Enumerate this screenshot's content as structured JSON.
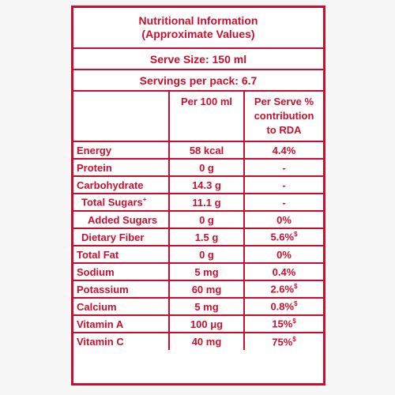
{
  "title_line1": "Nutritional Information",
  "title_line2": "(Approximate Values)",
  "serve_size": "Serve Size: 150 ml",
  "servings": "Servings per pack: 6.7",
  "col_per100": "Per 100 ml",
  "col_serve_l1": "Per Serve %",
  "col_serve_l2": "contribution",
  "col_serve_l3": "to RDA",
  "rows": [
    {
      "name": "Energy",
      "per100": "58 kcal",
      "serve": "4.4%"
    },
    {
      "name": "Protein",
      "per100": "0 g",
      "serve": "-"
    },
    {
      "name": "Carbohydrate",
      "per100": "14.3 g",
      "serve": "-"
    },
    {
      "name": "Total Sugars",
      "per100": "11.1 g",
      "serve": "-"
    },
    {
      "name": "Added Sugars",
      "per100": "0 g",
      "serve": "0%"
    },
    {
      "name": "Dietary Fiber",
      "per100": "1.5 g",
      "serve": "5.6%"
    },
    {
      "name": "Total Fat",
      "per100": "0 g",
      "serve": "0%"
    },
    {
      "name": "Sodium",
      "per100": "5 mg",
      "serve": "0.4%"
    },
    {
      "name": "Potassium",
      "per100": "60 mg",
      "serve": "2.6%"
    },
    {
      "name": "Calcium",
      "per100": "5 mg",
      "serve": "0.8%"
    },
    {
      "name": "Vitamin A",
      "per100": "100 μg",
      "serve": "15%"
    },
    {
      "name": "Vitamin C",
      "per100": "40 mg",
      "serve": "75%"
    }
  ],
  "mark_plus": "+",
  "mark_dollar": "$",
  "colors": {
    "accent": "#c8102e",
    "background": "#ffffff"
  }
}
